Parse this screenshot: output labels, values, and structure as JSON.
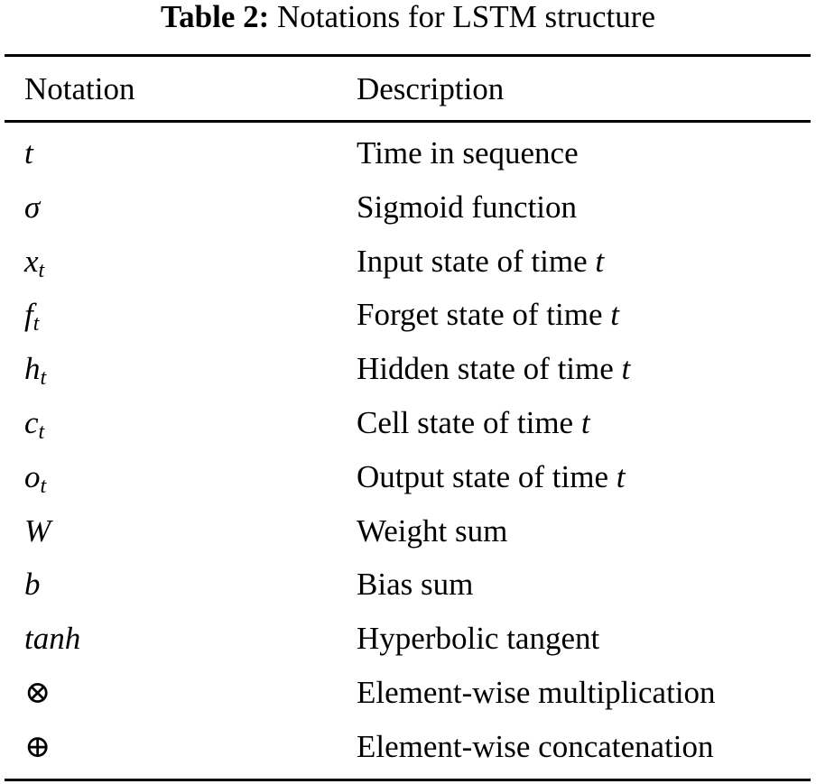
{
  "table": {
    "caption_label": "Table 2:",
    "caption_text": "Notations for LSTM structure",
    "headers": [
      "Notation",
      "Description"
    ],
    "rows": [
      {
        "symbol": "t",
        "sub": "",
        "italic": true,
        "description": "Time in sequence",
        "desc_var": ""
      },
      {
        "symbol": "σ",
        "sub": "",
        "italic": true,
        "description": "Sigmoid function",
        "desc_var": ""
      },
      {
        "symbol": "x",
        "sub": "t",
        "italic": true,
        "description": "Input state of time ",
        "desc_var": "t"
      },
      {
        "symbol": "f",
        "sub": "t",
        "italic": true,
        "description": "Forget state of time ",
        "desc_var": "t"
      },
      {
        "symbol": "h",
        "sub": "t",
        "italic": true,
        "description": "Hidden state of time ",
        "desc_var": "t"
      },
      {
        "symbol": "c",
        "sub": "t",
        "italic": true,
        "description": "Cell state of time ",
        "desc_var": "t"
      },
      {
        "symbol": "o",
        "sub": "t",
        "italic": true,
        "description": "Output state of time ",
        "desc_var": "t"
      },
      {
        "symbol": "W",
        "sub": "",
        "italic": true,
        "description": "Weight sum",
        "desc_var": ""
      },
      {
        "symbol": "b",
        "sub": "",
        "italic": true,
        "description": "Bias sum",
        "desc_var": ""
      },
      {
        "symbol": "tanh",
        "sub": "",
        "italic": true,
        "description": "Hyperbolic tangent",
        "desc_var": ""
      },
      {
        "symbol": "⊗",
        "sub": "",
        "italic": false,
        "description": "Element-wise multiplication",
        "desc_var": ""
      },
      {
        "symbol": "⊕",
        "sub": "",
        "italic": false,
        "description": "Element-wise concatenation",
        "desc_var": ""
      }
    ]
  }
}
